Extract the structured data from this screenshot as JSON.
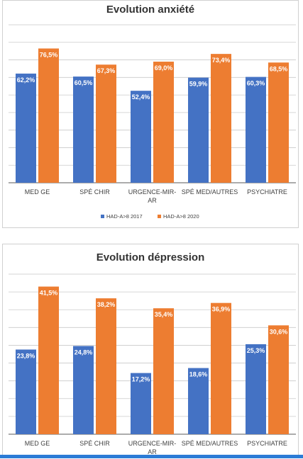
{
  "colors": {
    "series_2017": "#4472c4",
    "series_2020": "#ed7d31",
    "grid": "#c9c9c9",
    "axis": "#595959",
    "label_text": "#ffffff",
    "category_text": "#404040"
  },
  "chart_data": [
    {
      "type": "bar",
      "title": "Evolution anxiété",
      "categories": [
        "MED GE",
        "SPÉ CHIR",
        "URGENCE-MIR-AR",
        "SPÉ MED/AUTRES",
        "PSYCHIATRE"
      ],
      "category_lines": [
        [
          "MED GE"
        ],
        [
          "SPÉ CHIR"
        ],
        [
          "URGENCE-MIR-",
          "AR"
        ],
        [
          "SPÉ MED/AUTRES"
        ],
        [
          "PSYCHIATRE"
        ]
      ],
      "series": [
        {
          "name": "HAD-A>8 2017",
          "values": [
            62.2,
            60.5,
            52.4,
            59.9,
            60.3
          ],
          "labels": [
            "62,2%",
            "60,5%",
            "52,4%",
            "59,9%",
            "60,3%"
          ]
        },
        {
          "name": "HAD-A>8 2020",
          "values": [
            76.5,
            67.3,
            69.0,
            73.4,
            68.5
          ],
          "labels": [
            "76,5%",
            "67,3%",
            "69,0%",
            "73,4%",
            "68,5%"
          ]
        }
      ],
      "ylim": [
        0,
        90
      ],
      "grid": true,
      "legend": "bottom",
      "xlabel": "",
      "ylabel": ""
    },
    {
      "type": "bar",
      "title": "Evolution dépression",
      "categories": [
        "MED GE",
        "SPÉ CHIR",
        "URGENCE-MIR-AR",
        "SPÉ MED/AUTRES",
        "PSYCHIATRE"
      ],
      "category_lines": [
        [
          "MED GE"
        ],
        [
          "SPÉ CHIR"
        ],
        [
          "URGENCE-MIR-",
          "AR"
        ],
        [
          "SPÉ MED/AUTRES"
        ],
        [
          "PSYCHIATRE"
        ]
      ],
      "series": [
        {
          "values": [
            23.8,
            24.8,
            17.2,
            18.6,
            25.3
          ],
          "labels": [
            "23,8%",
            "24,8%",
            "17,2%",
            "18,6%",
            "25,3%"
          ]
        },
        {
          "values": [
            41.5,
            38.2,
            35.4,
            36.9,
            30.6
          ],
          "labels": [
            "41,5%",
            "38,2%",
            "35,4%",
            "36,9%",
            "30,6%"
          ]
        }
      ],
      "ylim": [
        0,
        45
      ],
      "grid": true,
      "legend": "none",
      "xlabel": "",
      "ylabel": ""
    }
  ]
}
